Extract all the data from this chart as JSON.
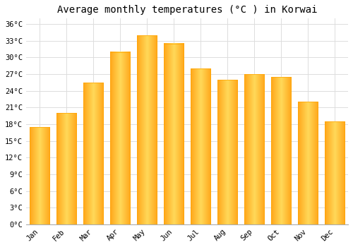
{
  "title": "Average monthly temperatures (°C ) in Korwai",
  "months": [
    "Jan",
    "Feb",
    "Mar",
    "Apr",
    "May",
    "Jun",
    "Jul",
    "Aug",
    "Sep",
    "Oct",
    "Nov",
    "Dec"
  ],
  "temperatures": [
    17.5,
    20.0,
    25.5,
    31.0,
    34.0,
    32.5,
    28.0,
    26.0,
    27.0,
    26.5,
    22.0,
    18.5
  ],
  "bar_color_center": "#FFD966",
  "bar_color_edge": "#FFA500",
  "background_color": "#FFFFFF",
  "grid_color": "#DDDDDD",
  "ylim": [
    0,
    37
  ],
  "ytick_step": 3,
  "title_fontsize": 10,
  "tick_fontsize": 7.5,
  "font_family": "monospace"
}
